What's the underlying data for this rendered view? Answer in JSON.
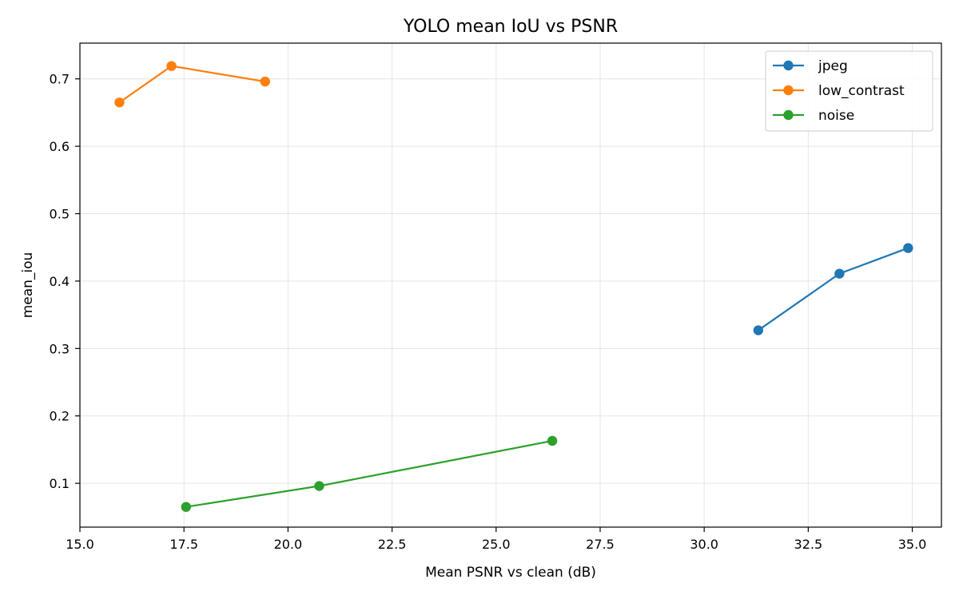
{
  "chart_data": {
    "type": "line",
    "title": "YOLO mean IoU vs PSNR",
    "xlabel": "Mean PSNR vs clean (dB)",
    "ylabel": "mean_iou",
    "xlim": [
      15.0,
      35.7
    ],
    "ylim": [
      0.035,
      0.753
    ],
    "xticks": [
      15.0,
      17.5,
      20.0,
      22.5,
      25.0,
      27.5,
      30.0,
      32.5,
      35.0
    ],
    "xtick_labels": [
      "15.0",
      "17.5",
      "20.0",
      "22.5",
      "25.0",
      "27.5",
      "30.0",
      "32.5",
      "35.0"
    ],
    "yticks": [
      0.1,
      0.2,
      0.3,
      0.4,
      0.5,
      0.6,
      0.7
    ],
    "ytick_labels": [
      "0.1",
      "0.2",
      "0.3",
      "0.4",
      "0.5",
      "0.6",
      "0.7"
    ],
    "grid": true,
    "legend_position": "top-right",
    "series": [
      {
        "name": "jpeg",
        "color": "#1f77b4",
        "x": [
          31.3,
          33.25,
          34.9
        ],
        "y": [
          0.327,
          0.411,
          0.449
        ]
      },
      {
        "name": "low_contrast",
        "color": "#ff7f0e",
        "x": [
          15.95,
          17.2,
          19.45
        ],
        "y": [
          0.665,
          0.719,
          0.696
        ]
      },
      {
        "name": "noise",
        "color": "#2ca02c",
        "x": [
          17.55,
          20.75,
          26.35
        ],
        "y": [
          0.065,
          0.096,
          0.163
        ]
      }
    ]
  }
}
